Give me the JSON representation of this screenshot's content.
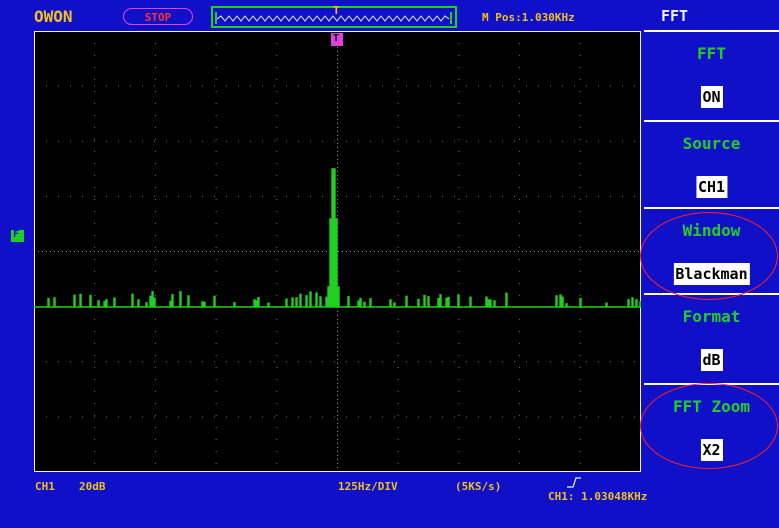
{
  "header": {
    "brand": "OWON",
    "run_state": "STOP",
    "trigger_marker": "T",
    "m_pos": "M Pos:1.030KHz",
    "mode_title": "FFT"
  },
  "screen": {
    "channel_marker": "F",
    "trigger_marker": "T"
  },
  "menu": {
    "items": [
      {
        "label": "FFT",
        "value": "ON"
      },
      {
        "label": "Source",
        "value": "CH1"
      },
      {
        "label": "Window",
        "value": "Blackman"
      },
      {
        "label": "Format",
        "value": "dB"
      },
      {
        "label": "FFT  Zoom",
        "value": "X2"
      }
    ]
  },
  "status": {
    "channel": "CH1",
    "scale": "20dB",
    "timebase": "125Hz/DIV",
    "sample_rate": "(5KS/s)",
    "freq_readout": "CH1: 1.03048KHz"
  },
  "colors": {
    "background": "#1010c8",
    "trace": "#20d020",
    "brand": "#f0c020",
    "menu_value_bg": "#ffffff",
    "stop": "#ff3030",
    "annotation": "#ff2020"
  }
}
